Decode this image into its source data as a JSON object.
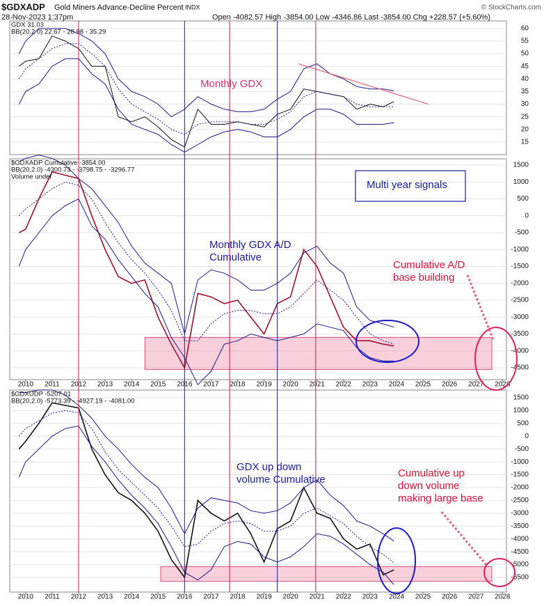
{
  "header": {
    "symbol": "$GDXADP",
    "name": "Gold Miners Advance-Decline Percent",
    "exchange": "INDX",
    "date": "28-Nov-2023 1:37pm",
    "ohlc": "Open -4082.57  High -3854.00  Low -4346.86  Last -3854.00  Chg +228.57 (+5.60%)",
    "credit": "© StockCharts.com"
  },
  "signals": [
    {
      "x": 2012.0,
      "color": "#c2185b"
    },
    {
      "x": 2016.0,
      "color": "#1a1aa0"
    },
    {
      "x": 2017.7,
      "color": "#c2185b"
    },
    {
      "x": 2019.5,
      "color": "#1a1aa0"
    },
    {
      "x": 2020.95,
      "color": "#c2185b"
    }
  ],
  "chart_data": [
    {
      "type": "line",
      "legend": [
        "GDX 31.03",
        "BB(20,2.0) 22.67 - 28.98 - 35.29"
      ],
      "annotations": [
        {
          "lines": [
            "Monthly GDX"
          ],
          "color": "#d6336c"
        }
      ],
      "x": [
        2009.75,
        2010.0,
        2010.5,
        2011.0,
        2011.5,
        2012.0,
        2012.5,
        2013.0,
        2013.5,
        2014.0,
        2014.5,
        2015.0,
        2015.5,
        2016.0,
        2016.5,
        2017.0,
        2017.5,
        2018.0,
        2018.5,
        2019.0,
        2019.5,
        2020.0,
        2020.5,
        2021.0,
        2021.5,
        2022.0,
        2022.5,
        2023.0,
        2023.5,
        2023.9
      ],
      "series": [
        {
          "color": "#111111",
          "values": [
            45,
            47,
            48,
            57,
            55,
            52,
            45,
            45,
            25,
            23,
            25,
            21,
            16,
            13,
            28,
            22,
            22,
            23,
            22,
            21,
            26,
            28,
            36,
            35,
            34,
            33,
            28,
            30,
            29,
            31
          ]
        },
        {
          "color": "#1a1a8c",
          "values": [
            50,
            55,
            60,
            60,
            60,
            58,
            55,
            50,
            40,
            35,
            33,
            30,
            25,
            28,
            33,
            30,
            28,
            27,
            27,
            28,
            32,
            35,
            44,
            46,
            42,
            40,
            37,
            36,
            36,
            35.29
          ]
        },
        {
          "color": "#1a1a8c",
          "dash": true,
          "values": [
            40,
            44,
            48,
            52,
            54,
            54,
            50,
            45,
            36,
            30,
            27,
            24,
            20,
            18,
            22,
            23,
            23,
            23,
            22,
            22,
            24,
            27,
            33,
            35,
            34,
            33,
            30,
            29,
            29,
            28.98
          ]
        },
        {
          "color": "#1a1a8c",
          "values": [
            30,
            35,
            38,
            45,
            48,
            48,
            42,
            38,
            28,
            22,
            20,
            18,
            14,
            11,
            14,
            17,
            19,
            20,
            19,
            17,
            17,
            20,
            25,
            28,
            28,
            26,
            22,
            22,
            22,
            22.67
          ]
        }
      ],
      "trendline": {
        "x": [
          2020.3,
          2025.2
        ],
        "y": [
          46,
          30
        ],
        "color": "#e0607e"
      },
      "xlim": [
        2009.4,
        2028.15
      ],
      "ylim": [
        10,
        63
      ],
      "yticks": [
        15,
        20,
        25,
        30,
        35,
        40,
        45,
        50,
        55,
        60
      ],
      "grid": true
    },
    {
      "type": "line",
      "legend": [
        "$GDXADP Cumulative -3854.00",
        "BB(20,2.0) -4300.73 - -3798.75 - -3296.77",
        "Volume undef"
      ],
      "annotations": [
        {
          "lines": [
            "Multi year signals"
          ],
          "color": "#1a1aa0",
          "boxed": true
        },
        {
          "lines": [
            "Monthly GDX A/D",
            "Cumulative"
          ],
          "color": "#1a1aa0"
        },
        {
          "lines": [
            "Cumulative A/D",
            "base building"
          ],
          "color": "#e0103a"
        }
      ],
      "x": [
        2009.75,
        2010.0,
        2010.5,
        2011.0,
        2011.5,
        2012.0,
        2012.5,
        2013.0,
        2013.5,
        2014.0,
        2014.5,
        2015.0,
        2015.5,
        2016.0,
        2016.5,
        2017.0,
        2017.5,
        2018.0,
        2018.5,
        2019.0,
        2019.5,
        2020.0,
        2020.5,
        2021.0,
        2021.5,
        2022.0,
        2022.5,
        2023.0,
        2023.5,
        2023.9
      ],
      "series": [
        {
          "color": "#a0102e",
          "width": 1.6,
          "values": [
            -500,
            -400,
            500,
            1300,
            1200,
            1100,
            0,
            -1000,
            -1800,
            -2000,
            -1900,
            -3000,
            -3800,
            -4500,
            -2300,
            -2400,
            -2600,
            -2500,
            -3000,
            -3500,
            -2600,
            -2400,
            -1000,
            -1500,
            -2400,
            -3300,
            -3700,
            -3700,
            -3800,
            -3854
          ]
        },
        {
          "color": "#1a1a8c",
          "values": [
            1600,
            1700,
            1800,
            1700,
            1500,
            1100,
            800,
            300,
            -200,
            -900,
            -1400,
            -1700,
            -2000,
            -3500,
            -1900,
            -1600,
            -1700,
            -1900,
            -2200,
            -2200,
            -2000,
            -1700,
            -1100,
            -900,
            -1400,
            -1700,
            -2700,
            -3100,
            -3200,
            -3296.77
          ]
        },
        {
          "color": "#1a1a8c",
          "dash": true,
          "values": [
            0,
            200,
            500,
            800,
            1000,
            900,
            500,
            -200,
            -800,
            -1300,
            -1700,
            -2200,
            -2800,
            -3700,
            -3700,
            -3200,
            -2900,
            -2800,
            -2800,
            -2900,
            -2900,
            -2700,
            -2300,
            -1900,
            -2200,
            -2500,
            -3000,
            -3500,
            -3700,
            -3798.75
          ]
        },
        {
          "color": "#1a1a8c",
          "values": [
            -1500,
            -1000,
            -500,
            0,
            300,
            500,
            -300,
            -700,
            -1300,
            -1800,
            -2300,
            -2700,
            -3600,
            -4200,
            -5000,
            -4600,
            -3800,
            -3700,
            -3500,
            -3600,
            -3700,
            -3600,
            -3500,
            -3200,
            -3300,
            -3400,
            -3900,
            -4200,
            -4300,
            -4300.73
          ]
        }
      ],
      "band": {
        "x": [
          2014.5,
          2027.6
        ],
        "y": [
          -3600,
          -4550
        ]
      },
      "xlim": [
        2009.4,
        2028.15
      ],
      "ylim": [
        -4850,
        1686
      ],
      "yticks": [
        1500,
        1000,
        500,
        0,
        -500,
        -1000,
        -1500,
        -2000,
        -2500,
        -3000,
        -3500,
        -4000,
        -4500
      ],
      "xticks": [
        2010,
        2011,
        2012,
        2013,
        2014,
        2015,
        2016,
        2017,
        2018,
        2019,
        2020,
        2021,
        2022,
        2023,
        2024,
        2025,
        2026,
        2027,
        2028
      ],
      "grid": true
    },
    {
      "type": "line",
      "legend": [
        "$GDXUDP -5207.01",
        "BB(20,2.0) -5773.39 - -4927.19 - -4081.00"
      ],
      "annotations": [
        {
          "lines": [
            "GDX up down",
            "volume Cumulative"
          ],
          "color": "#1a1aa0"
        },
        {
          "lines": [
            "Cumulative up",
            "down volume",
            "making large base"
          ],
          "color": "#e0103a"
        }
      ],
      "x": [
        2009.75,
        2010.0,
        2010.5,
        2011.0,
        2011.5,
        2012.0,
        2012.5,
        2013.0,
        2013.5,
        2014.0,
        2014.5,
        2015.0,
        2015.5,
        2016.0,
        2016.5,
        2017.0,
        2017.5,
        2018.0,
        2018.5,
        2019.0,
        2019.5,
        2020.0,
        2020.5,
        2021.0,
        2021.5,
        2022.0,
        2022.5,
        2023.0,
        2023.5,
        2023.9
      ],
      "series": [
        {
          "color": "#111111",
          "width": 1.6,
          "values": [
            -500,
            -200,
            500,
            1300,
            1200,
            1100,
            -500,
            -1500,
            -2200,
            -2500,
            -3000,
            -3700,
            -4800,
            -5500,
            -2500,
            -3000,
            -3300,
            -3000,
            -3800,
            -4900,
            -3600,
            -3300,
            -2000,
            -3000,
            -3200,
            -4000,
            -4400,
            -4200,
            -5400,
            -5207.01
          ]
        },
        {
          "color": "#1a1a8c",
          "values": [
            1700,
            1700,
            1800,
            1800,
            1600,
            1200,
            700,
            0,
            -500,
            -1100,
            -1600,
            -2000,
            -2800,
            -3800,
            -2800,
            -2400,
            -2500,
            -2600,
            -2900,
            -3000,
            -2900,
            -2600,
            -2000,
            -1700,
            -2300,
            -2700,
            -3300,
            -3500,
            -3800,
            -4081
          ]
        },
        {
          "color": "#1a1a8c",
          "dash": true,
          "values": [
            0,
            300,
            600,
            900,
            1000,
            900,
            300,
            -600,
            -1300,
            -1800,
            -2300,
            -2800,
            -3500,
            -4300,
            -4200,
            -3700,
            -3400,
            -3300,
            -3400,
            -3700,
            -3700,
            -3500,
            -3000,
            -2800,
            -3100,
            -3400,
            -3900,
            -4300,
            -4600,
            -4927.19
          ]
        },
        {
          "color": "#1a1a8c",
          "values": [
            -1600,
            -1000,
            -500,
            0,
            300,
            400,
            -400,
            -1000,
            -1700,
            -2300,
            -2800,
            -3400,
            -4300,
            -5300,
            -5600,
            -5200,
            -4300,
            -4100,
            -4200,
            -4700,
            -4900,
            -4700,
            -4300,
            -3800,
            -3900,
            -4200,
            -4600,
            -5000,
            -5300,
            -5773.39
          ]
        }
      ],
      "band": {
        "x": [
          2015.1,
          2027.6
        ],
        "y": [
          -5080,
          -5650
        ]
      },
      "xlim": [
        2009.4,
        2028.15
      ],
      "ylim": [
        -6070,
        1798
      ],
      "yticks": [
        1500,
        1000,
        500,
        0,
        -500,
        -1000,
        -1500,
        -2000,
        -2500,
        -3000,
        -3500,
        -4000,
        -4500,
        -5000,
        -5500
      ],
      "xticks": [
        2010,
        2011,
        2012,
        2013,
        2014,
        2015,
        2016,
        2017,
        2018,
        2019,
        2020,
        2021,
        2022,
        2023,
        2024,
        2025,
        2026,
        2027,
        2028
      ],
      "grid": true
    }
  ]
}
